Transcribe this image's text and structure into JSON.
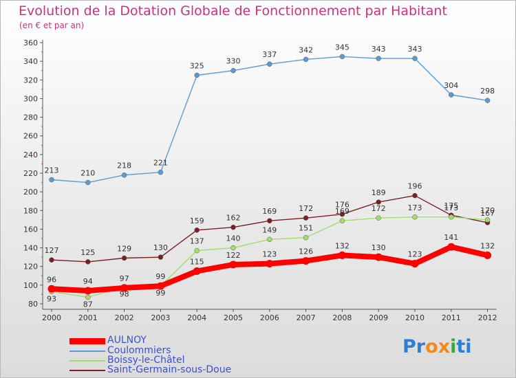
{
  "title": "Evolution de la Dotation Globale de Fonctionnement par Habitant",
  "subtitle": "(en € et par an)",
  "brand": {
    "text": "Proxiti",
    "letters": [
      "P",
      "r",
      "o",
      "x",
      "i",
      "t",
      "i"
    ],
    "colors": [
      "#2d7fd6",
      "#2d7fd6",
      "#f08a1c",
      "#f08a1c",
      "#3da83d",
      "#2d7fd6",
      "#2d7fd6"
    ]
  },
  "chart_data": {
    "type": "line",
    "title": "Evolution de la Dotation Globale de Fonctionnement par Habitant",
    "subtitle": "(en € et par an)",
    "x": [
      "2000",
      "2001",
      "2002",
      "2003",
      "2004",
      "2005",
      "2006",
      "2007",
      "2008",
      "2009",
      "2010",
      "2011",
      "2012"
    ],
    "ylim": [
      80,
      360
    ],
    "yticks": [
      80,
      100,
      120,
      140,
      160,
      180,
      200,
      220,
      240,
      260,
      280,
      300,
      320,
      340,
      360
    ],
    "grid": false,
    "legend_position": "bottom-left",
    "series": [
      {
        "name": "AULNOY",
        "color": "#ff0000",
        "values": [
          96,
          94,
          97,
          99,
          115,
          122,
          123,
          126,
          132,
          130,
          123,
          141,
          132
        ]
      },
      {
        "name": "Coulommiers",
        "color": "#5b9bd5",
        "values": [
          213,
          210,
          218,
          221,
          325,
          330,
          337,
          342,
          345,
          343,
          343,
          304,
          298
        ]
      },
      {
        "name": "Boissy-le-Châtel",
        "color": "#9fe06a",
        "values": [
          93,
          87,
          98,
          99,
          137,
          140,
          149,
          151,
          169,
          172,
          173,
          173,
          170
        ]
      },
      {
        "name": "Saint-Germain-sous-Doue",
        "color": "#7b1f22",
        "values": [
          127,
          125,
          129,
          130,
          159,
          162,
          169,
          172,
          176,
          189,
          196,
          175,
          167
        ]
      }
    ],
    "data_labels": {
      "AULNOY": [
        96,
        94,
        97,
        99,
        115,
        122,
        123,
        126,
        132,
        130,
        123,
        141,
        132
      ],
      "Coulommiers": [
        213,
        210,
        218,
        221,
        325,
        330,
        337,
        342,
        345,
        343,
        343,
        304,
        298
      ],
      "Boissy-le-Châtel": [
        93,
        87,
        98,
        99,
        null,
        null,
        null,
        null,
        null,
        null,
        null,
        null,
        null
      ],
      "Saint-Germain-sous-Doue": [
        127,
        125,
        129,
        130,
        159,
        162,
        169,
        172,
        176,
        189,
        196,
        175,
        167
      ],
      "Boissy-le-Châtel upper": [
        null,
        null,
        null,
        null,
        137,
        140,
        149,
        151,
        169,
        172,
        173,
        173,
        170
      ]
    }
  }
}
